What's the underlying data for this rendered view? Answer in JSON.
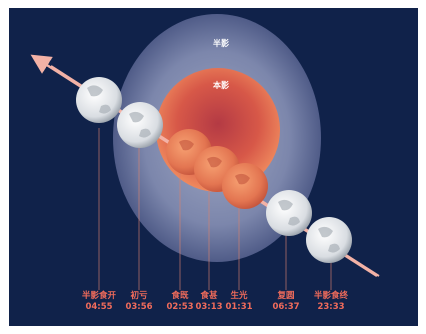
{
  "colors": {
    "background": "#10224a",
    "penumbra": "#9fa8c8",
    "umbra": "#d85a48",
    "arrow": "#f3b2a6",
    "label": "#ef6b5b"
  },
  "zones": {
    "penumbra_label": "半影",
    "umbra_label": "本影"
  },
  "events": [
    {
      "name": "半影食开",
      "time": "04:55"
    },
    {
      "name": "初亏",
      "time": "03:56"
    },
    {
      "name": "食既",
      "time": "02:53"
    },
    {
      "name": "食甚",
      "time": "03:13"
    },
    {
      "name": "生光",
      "time": "01:31"
    },
    {
      "name": "复圆",
      "time": "06:37"
    },
    {
      "name": "半影食终",
      "time": "23:33"
    }
  ]
}
